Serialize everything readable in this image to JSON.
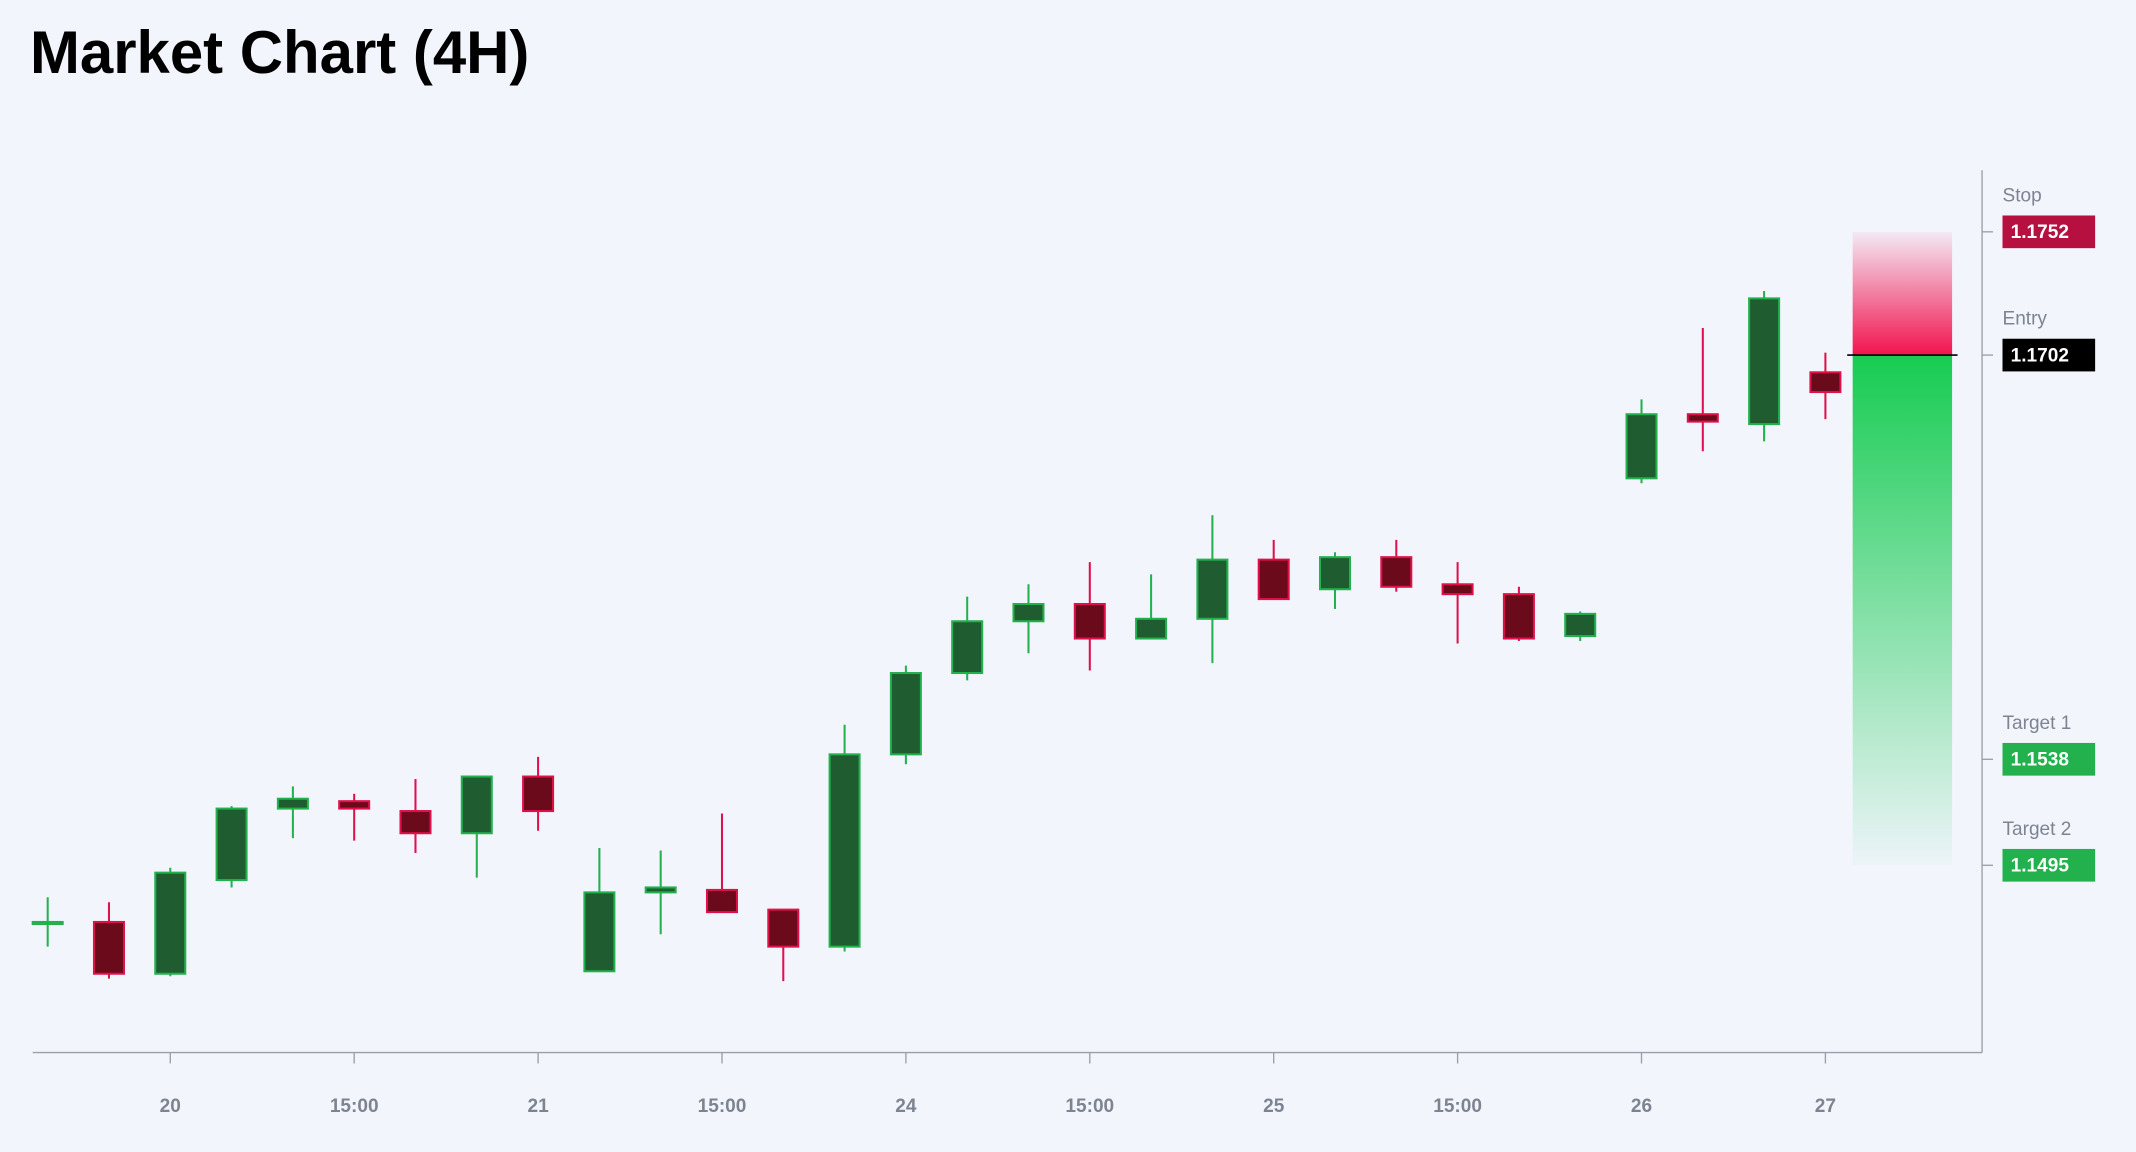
{
  "chart_data": {
    "type": "candlestick",
    "title": "Market Chart (4H)",
    "categories": [
      null,
      null,
      "20",
      null,
      null,
      "15:00",
      null,
      null,
      "21",
      null,
      null,
      "15:00",
      null,
      null,
      "24",
      null,
      null,
      "15:00",
      null,
      null,
      "25",
      null,
      null,
      "15:00",
      null,
      null,
      "26",
      null,
      null,
      "27"
    ],
    "open": [
      1.1472,
      1.1472,
      1.1451,
      1.1489,
      1.1518,
      1.1521,
      1.1517,
      1.1508,
      1.1531,
      1.1452,
      1.1484,
      1.1485,
      1.1477,
      1.1462,
      1.154,
      1.1573,
      1.1594,
      1.1601,
      1.1587,
      1.1595,
      1.1619,
      1.1607,
      1.162,
      1.1609,
      1.1605,
      1.1588,
      1.1652,
      1.1678,
      1.1674,
      1.1695
    ],
    "high": [
      1.1482,
      1.148,
      1.1494,
      1.1519,
      1.1527,
      1.1524,
      1.153,
      1.1531,
      1.1539,
      1.1502,
      1.1501,
      1.1516,
      1.1477,
      1.1552,
      1.1576,
      1.1604,
      1.1609,
      1.1618,
      1.1613,
      1.1637,
      1.1627,
      1.1622,
      1.1627,
      1.1618,
      1.1608,
      1.1598,
      1.1684,
      1.1713,
      1.1728,
      1.1703
    ],
    "low": [
      1.1462,
      1.1449,
      1.145,
      1.1486,
      1.1506,
      1.1505,
      1.15,
      1.149,
      1.1509,
      1.1452,
      1.1467,
      1.1476,
      1.1448,
      1.146,
      1.1536,
      1.157,
      1.1581,
      1.1574,
      1.1587,
      1.1577,
      1.1603,
      1.1599,
      1.1606,
      1.1585,
      1.1586,
      1.1586,
      1.165,
      1.1663,
      1.1667,
      1.1676
    ],
    "close": [
      1.1472,
      1.1451,
      1.1492,
      1.1518,
      1.1522,
      1.1518,
      1.1508,
      1.1531,
      1.1517,
      1.1484,
      1.1486,
      1.1476,
      1.1462,
      1.154,
      1.1573,
      1.1594,
      1.1601,
      1.1587,
      1.1595,
      1.1619,
      1.1603,
      1.162,
      1.1608,
      1.1605,
      1.1587,
      1.1597,
      1.1678,
      1.1675,
      1.1725,
      1.1687
    ],
    "up_color": "#22b14c",
    "up_fill": "#1f5c30",
    "down_color": "#e0104a",
    "down_fill": "#6b0a1a",
    "ylim": [
      1.1419,
      1.1777
    ],
    "levels": [
      {
        "name": "Stop",
        "value": 1.1752,
        "color": "#b5103f"
      },
      {
        "name": "Entry",
        "value": 1.1702,
        "color": "#000000"
      },
      {
        "name": "Target 1",
        "value": 1.1538,
        "color": "#22b14c"
      },
      {
        "name": "Target 2",
        "value": 1.1495,
        "color": "#22b14c"
      }
    ]
  }
}
